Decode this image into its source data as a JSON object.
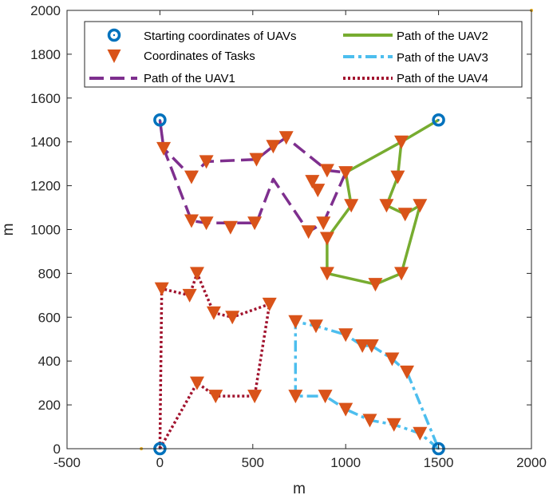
{
  "chart_data": {
    "type": "scatter",
    "xlabel": "m",
    "ylabel": "m",
    "xlim": [
      -500,
      2000
    ],
    "ylim": [
      0,
      2000
    ],
    "xticks": [
      -500,
      0,
      500,
      1000,
      1500,
      2000
    ],
    "yticks": [
      0,
      200,
      400,
      600,
      800,
      1000,
      1200,
      1400,
      1600,
      1800,
      2000
    ],
    "grid": false,
    "legend_position": "top",
    "colors": {
      "start": "#0072BD",
      "task": "#D95319",
      "uav1": "#7E2F8E",
      "uav2": "#77AC30",
      "uav3": "#4DBEEE",
      "uav4": "#A2142F",
      "axis": "#262626"
    },
    "legend": [
      "Starting coordinates of UAVs",
      "Coordinates of Tasks",
      "Path of the UAV1",
      "Path of the UAV2",
      "Path of the UAV3",
      "Path of the UAV4"
    ],
    "starting_points": [
      {
        "x": 0,
        "y": 1500
      },
      {
        "x": 1500,
        "y": 1500
      },
      {
        "x": 0,
        "y": 0
      },
      {
        "x": 1500,
        "y": 0
      }
    ],
    "corner_marks": [
      {
        "x": 2000,
        "y": 2000
      },
      {
        "x": -100,
        "y": 0
      }
    ],
    "tasks": [
      {
        "x": 20,
        "y": 1370
      },
      {
        "x": 170,
        "y": 1240
      },
      {
        "x": 250,
        "y": 1310
      },
      {
        "x": 520,
        "y": 1320
      },
      {
        "x": 610,
        "y": 1380
      },
      {
        "x": 680,
        "y": 1420
      },
      {
        "x": 900,
        "y": 1270
      },
      {
        "x": 850,
        "y": 1180
      },
      {
        "x": 820,
        "y": 1220
      },
      {
        "x": 880,
        "y": 1030
      },
      {
        "x": 800,
        "y": 990
      },
      {
        "x": 170,
        "y": 1040
      },
      {
        "x": 250,
        "y": 1030
      },
      {
        "x": 380,
        "y": 1010
      },
      {
        "x": 510,
        "y": 1030
      },
      {
        "x": 1000,
        "y": 1260
      },
      {
        "x": 1300,
        "y": 1400
      },
      {
        "x": 1280,
        "y": 1240
      },
      {
        "x": 1220,
        "y": 1110
      },
      {
        "x": 1320,
        "y": 1070
      },
      {
        "x": 1400,
        "y": 1110
      },
      {
        "x": 1030,
        "y": 1110
      },
      {
        "x": 900,
        "y": 960
      },
      {
        "x": 900,
        "y": 800
      },
      {
        "x": 1160,
        "y": 750
      },
      {
        "x": 1300,
        "y": 800
      },
      {
        "x": 730,
        "y": 580
      },
      {
        "x": 840,
        "y": 560
      },
      {
        "x": 1000,
        "y": 520
      },
      {
        "x": 1090,
        "y": 470
      },
      {
        "x": 1140,
        "y": 470
      },
      {
        "x": 1250,
        "y": 410
      },
      {
        "x": 1330,
        "y": 350
      },
      {
        "x": 730,
        "y": 240
      },
      {
        "x": 890,
        "y": 240
      },
      {
        "x": 1000,
        "y": 180
      },
      {
        "x": 1130,
        "y": 130
      },
      {
        "x": 1260,
        "y": 110
      },
      {
        "x": 1400,
        "y": 70
      },
      {
        "x": 10,
        "y": 730
      },
      {
        "x": 160,
        "y": 700
      },
      {
        "x": 200,
        "y": 800
      },
      {
        "x": 290,
        "y": 620
      },
      {
        "x": 390,
        "y": 600
      },
      {
        "x": 590,
        "y": 660
      },
      {
        "x": 200,
        "y": 300
      },
      {
        "x": 300,
        "y": 240
      },
      {
        "x": 510,
        "y": 240
      }
    ],
    "series": [
      {
        "name": "Path of the UAV1",
        "style": "dashed",
        "x": [
          0,
          20,
          170,
          250,
          520,
          610,
          680,
          900,
          1000,
          880,
          800,
          610,
          520,
          250,
          170,
          20,
          0
        ],
        "y": [
          1500,
          1370,
          1240,
          1310,
          1320,
          1380,
          1420,
          1270,
          1260,
          1030,
          990,
          1230,
          1030,
          1030,
          1040,
          1370,
          1500
        ]
      },
      {
        "name": "Path of the UAV2",
        "style": "solid",
        "x": [
          1500,
          1300,
          1280,
          1220,
          1320,
          1400,
          1300,
          1160,
          900,
          900,
          1030,
          1000,
          1300,
          1500
        ],
        "y": [
          1500,
          1400,
          1240,
          1110,
          1070,
          1110,
          800,
          750,
          800,
          960,
          1110,
          1260,
          1400,
          1500
        ]
      },
      {
        "name": "Path of the UAV3",
        "style": "dashdot",
        "x": [
          1500,
          1400,
          1260,
          1130,
          1000,
          890,
          730,
          730,
          840,
          1000,
          1090,
          1140,
          1250,
          1330,
          1500
        ],
        "y": [
          0,
          70,
          110,
          130,
          180,
          240,
          240,
          580,
          560,
          520,
          470,
          470,
          410,
          350,
          0
        ]
      },
      {
        "name": "Path of the UAV4",
        "style": "dotted",
        "x": [
          0,
          10,
          160,
          200,
          290,
          390,
          590,
          510,
          300,
          200,
          0
        ],
        "y": [
          0,
          730,
          700,
          800,
          620,
          600,
          660,
          240,
          240,
          300,
          0
        ]
      }
    ]
  }
}
